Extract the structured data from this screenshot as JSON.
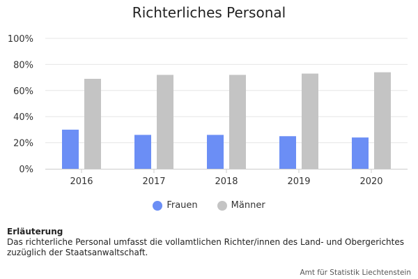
{
  "chart_data": {
    "type": "bar",
    "title": "Richterliches Personal",
    "xlabel": "",
    "ylabel": "",
    "categories": [
      "2016",
      "2017",
      "2018",
      "2019",
      "2020"
    ],
    "series": [
      {
        "name": "Frauen",
        "color": "#6b8ef5",
        "values": [
          30,
          26,
          26,
          25,
          24
        ]
      },
      {
        "name": "Männer",
        "color": "#c4c4c4",
        "values": [
          69,
          72,
          72,
          73,
          74
        ]
      }
    ],
    "ylim": [
      0,
      100
    ],
    "yticks": [
      "0%",
      "20%",
      "40%",
      "60%",
      "80%",
      "100%"
    ],
    "grid": true,
    "legend_position": "bottom"
  },
  "note": {
    "title": "Erläuterung",
    "text_line1": "Das richterliche Personal umfasst die vollamtlichen Richter/innen des Land- und Obergerichtes",
    "text_line2": "zuzüglich der Staatsanwaltschaft."
  },
  "credit": {
    "text": "Amt für Statistik Liechtenstein"
  }
}
